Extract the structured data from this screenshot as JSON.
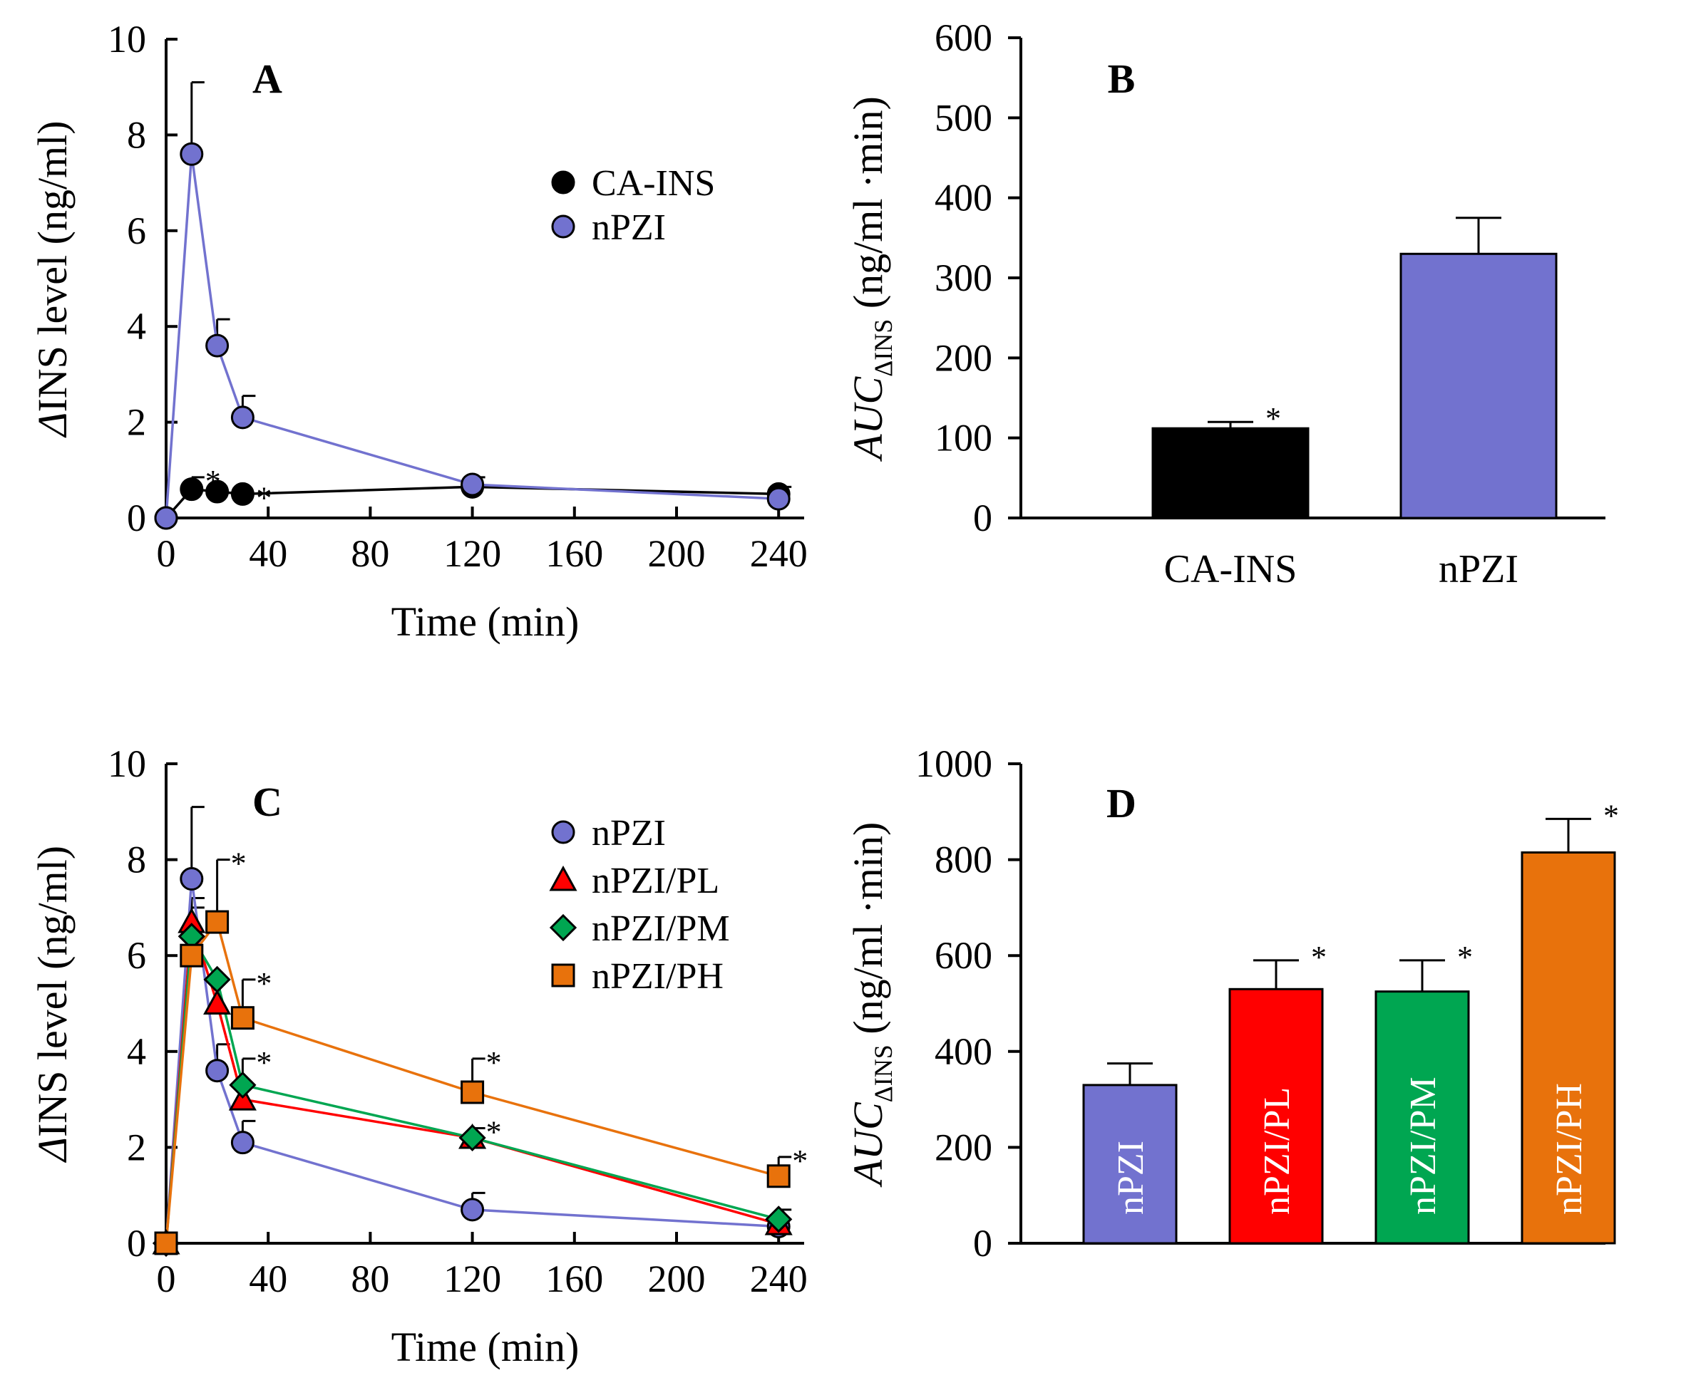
{
  "chart_data": [
    {
      "panel": "A",
      "type": "line",
      "xlabel": "Time (min)",
      "ylabel": "ΔINS level (ng/ml)",
      "ylabel_parts": [
        "Δ",
        "INS level (ng/ml)"
      ],
      "xlim": [
        0,
        250
      ],
      "ylim": [
        0,
        10
      ],
      "xticks": [
        "0",
        "40",
        "80",
        "120",
        "160",
        "200",
        "240"
      ],
      "yticks": [
        "0",
        "2",
        "4",
        "6",
        "8",
        "10"
      ],
      "legend_position": "top-right",
      "series": [
        {
          "name": "CA-INS",
          "color": "#000000",
          "marker": "circle",
          "x": [
            0,
            10,
            20,
            30,
            120,
            240
          ],
          "y": [
            0,
            0.6,
            0.55,
            0.5,
            0.65,
            0.5
          ],
          "err": [
            0,
            0.25,
            0,
            0,
            0,
            0.15
          ],
          "stars": [
            false,
            true,
            true,
            true,
            false,
            false
          ]
        },
        {
          "name": "nPZI",
          "color": "#7272cf",
          "marker": "circle",
          "x": [
            0,
            10,
            20,
            30,
            120,
            240
          ],
          "y": [
            0,
            7.6,
            3.6,
            2.1,
            0.7,
            0.4
          ],
          "err": [
            0,
            1.5,
            0.55,
            0.45,
            0.15,
            0
          ],
          "stars": [
            false,
            false,
            false,
            false,
            false,
            false
          ]
        }
      ]
    },
    {
      "panel": "B",
      "type": "bar",
      "ylabel_main": "AUC",
      "ylabel_sub": "ΔINS",
      "ylabel_units": "(ng/ml ·min)",
      "ylim": [
        0,
        600
      ],
      "yticks": [
        "0",
        "100",
        "200",
        "300",
        "400",
        "500",
        "600"
      ],
      "categories": [
        "CA-INS",
        "nPZI"
      ],
      "values": [
        112,
        330
      ],
      "err": [
        8,
        45
      ],
      "colors": [
        "#000000",
        "#7272cf"
      ],
      "stars": [
        true,
        false
      ]
    },
    {
      "panel": "C",
      "type": "line",
      "xlabel": "Time (min)",
      "ylabel": "ΔINS level (ng/ml)",
      "ylabel_parts": [
        "Δ",
        "INS level (ng/ml)"
      ],
      "xlim": [
        0,
        250
      ],
      "ylim": [
        0,
        10
      ],
      "xticks": [
        "0",
        "40",
        "80",
        "120",
        "160",
        "200",
        "240"
      ],
      "yticks": [
        "0",
        "2",
        "4",
        "6",
        "8",
        "10"
      ],
      "legend_position": "top-right",
      "series": [
        {
          "name": "nPZI",
          "color": "#7272cf",
          "marker": "circle",
          "x": [
            0,
            10,
            20,
            30,
            120,
            240
          ],
          "y": [
            0,
            7.6,
            3.6,
            2.1,
            0.7,
            0.35
          ],
          "err": [
            0,
            1.5,
            0.55,
            0.45,
            0.35,
            0
          ],
          "stars": [
            false,
            false,
            false,
            false,
            false,
            false
          ]
        },
        {
          "name": "nPZI/PL",
          "color": "#ff0000",
          "marker": "triangle",
          "x": [
            0,
            10,
            20,
            30,
            120,
            240
          ],
          "y": [
            0,
            6.7,
            5.0,
            3.0,
            2.2,
            0.4
          ],
          "err": [
            0,
            0.5,
            0,
            0,
            0,
            0
          ],
          "stars": [
            false,
            false,
            false,
            false,
            false,
            false
          ]
        },
        {
          "name": "nPZI/PM",
          "color": "#00a651",
          "marker": "diamond",
          "x": [
            0,
            10,
            20,
            30,
            120,
            240
          ],
          "y": [
            0,
            6.4,
            5.5,
            3.3,
            2.2,
            0.5
          ],
          "err": [
            0,
            0.8,
            0,
            0.55,
            0.2,
            0.2
          ],
          "stars": [
            false,
            false,
            false,
            true,
            true,
            false
          ]
        },
        {
          "name": "nPZI/PH",
          "color": "#e8720c",
          "marker": "square",
          "x": [
            0,
            10,
            20,
            30,
            120,
            240
          ],
          "y": [
            0,
            6.0,
            6.7,
            4.7,
            3.15,
            1.4
          ],
          "err": [
            0,
            1.0,
            1.3,
            0.8,
            0.7,
            0.4
          ],
          "stars": [
            false,
            false,
            true,
            true,
            true,
            true
          ]
        }
      ]
    },
    {
      "panel": "D",
      "type": "bar",
      "ylabel_main": "AUC",
      "ylabel_sub": "ΔINS",
      "ylabel_units": "(ng/ml ·min)",
      "ylim": [
        0,
        1000
      ],
      "yticks": [
        "0",
        "200",
        "400",
        "600",
        "800",
        "1000"
      ],
      "categories": [
        "nPZI",
        "nPZI/PL",
        "nPZI/PM",
        "nPZI/PH"
      ],
      "values": [
        330,
        530,
        525,
        815
      ],
      "err": [
        45,
        60,
        65,
        70
      ],
      "colors": [
        "#7272cf",
        "#ff0000",
        "#00a651",
        "#e8720c"
      ],
      "stars": [
        false,
        true,
        true,
        true
      ]
    }
  ]
}
